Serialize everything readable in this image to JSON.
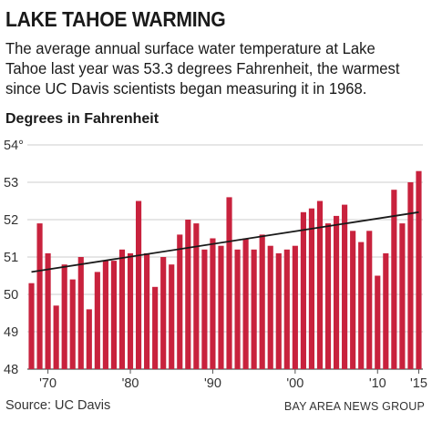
{
  "chart_data": {
    "type": "bar",
    "title": "LAKE TAHOE WARMING",
    "subtitle": "The average annual surface water temperature at Lake Tahoe last year was 53.3 degrees Fahrenheit, the warmest since UC Davis scientists began measuring it in 1968.",
    "ylabel": "Degrees in Fahrenheit",
    "xlabel": "",
    "ylim": [
      48,
      54
    ],
    "y_ticks": [
      "48",
      "49",
      "50",
      "51",
      "52",
      "53",
      "54°"
    ],
    "x_tick_labels": [
      {
        "year": 1970,
        "label": "'70"
      },
      {
        "year": 1980,
        "label": "'80"
      },
      {
        "year": 1990,
        "label": "'90"
      },
      {
        "year": 2000,
        "label": "'00"
      },
      {
        "year": 2010,
        "label": "'10"
      },
      {
        "year": 2015,
        "label": "'15"
      }
    ],
    "years": [
      1968,
      1969,
      1970,
      1971,
      1972,
      1973,
      1974,
      1975,
      1976,
      1977,
      1978,
      1979,
      1980,
      1981,
      1982,
      1983,
      1984,
      1985,
      1986,
      1987,
      1988,
      1989,
      1990,
      1991,
      1992,
      1993,
      1994,
      1995,
      1996,
      1997,
      1998,
      1999,
      2000,
      2001,
      2002,
      2003,
      2004,
      2005,
      2006,
      2007,
      2008,
      2009,
      2010,
      2011,
      2012,
      2013,
      2014,
      2015
    ],
    "values": [
      50.3,
      51.9,
      51.1,
      49.7,
      50.8,
      50.4,
      51.0,
      49.6,
      50.6,
      50.9,
      50.9,
      51.2,
      51.1,
      52.5,
      51.1,
      50.2,
      51.0,
      50.8,
      51.6,
      52.0,
      51.9,
      51.2,
      51.5,
      51.3,
      52.6,
      51.2,
      51.5,
      51.2,
      51.6,
      51.3,
      51.1,
      51.2,
      51.3,
      52.2,
      52.3,
      52.5,
      51.9,
      52.1,
      52.4,
      51.7,
      51.4,
      51.7,
      50.5,
      51.1,
      52.8,
      51.9,
      53.0,
      53.3
    ],
    "trend": {
      "start": {
        "year": 1968,
        "value": 50.6
      },
      "end": {
        "year": 2015,
        "value": 52.2
      }
    },
    "grid": true,
    "colors": {
      "bar": "#c8223d",
      "trend": "#1a1a1a",
      "grid": "#bbbbbb",
      "axis": "#555555"
    }
  },
  "footer": {
    "source": "Source: UC Davis",
    "credit": "BAY AREA NEWS GROUP"
  }
}
